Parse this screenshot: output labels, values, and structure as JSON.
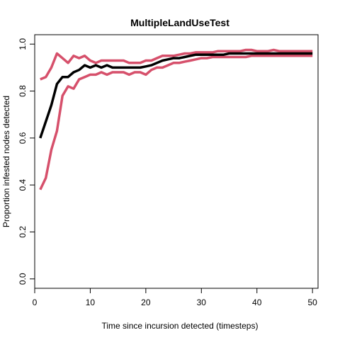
{
  "chart_data": {
    "type": "line",
    "title": "MultipleLandUseTest",
    "xlabel": "Time since incursion detected (timesteps)",
    "ylabel": "Proportion infested nodes detected",
    "xlim": [
      0,
      51
    ],
    "ylim": [
      -0.04,
      1.04
    ],
    "xticks": [
      0,
      10,
      20,
      30,
      40,
      50
    ],
    "yticks": [
      0.0,
      0.2,
      0.4,
      0.6,
      0.8,
      1.0
    ],
    "ytick_labels": [
      "0.0",
      "0.2",
      "0.4",
      "0.6",
      "0.8",
      "1.0"
    ],
    "grid": false,
    "legend": "none",
    "x": [
      1,
      2,
      3,
      4,
      5,
      6,
      7,
      8,
      9,
      10,
      11,
      12,
      13,
      14,
      15,
      16,
      17,
      18,
      19,
      20,
      21,
      22,
      23,
      24,
      25,
      26,
      27,
      28,
      29,
      30,
      31,
      32,
      33,
      34,
      35,
      36,
      37,
      38,
      39,
      40,
      41,
      42,
      43,
      44,
      45,
      46,
      47,
      48,
      49,
      50
    ],
    "series": [
      {
        "color": "#d6506b",
        "width": 3.5,
        "values": [
          0.85,
          0.86,
          0.9,
          0.96,
          0.94,
          0.92,
          0.95,
          0.94,
          0.95,
          0.93,
          0.92,
          0.93,
          0.93,
          0.93,
          0.93,
          0.93,
          0.92,
          0.92,
          0.92,
          0.93,
          0.93,
          0.94,
          0.95,
          0.95,
          0.95,
          0.955,
          0.96,
          0.96,
          0.965,
          0.965,
          0.965,
          0.965,
          0.97,
          0.97,
          0.97,
          0.97,
          0.97,
          0.975,
          0.975,
          0.97,
          0.97,
          0.97,
          0.975,
          0.97,
          0.97,
          0.97,
          0.97,
          0.97,
          0.97,
          0.97
        ]
      },
      {
        "color": "#d6506b",
        "width": 3.5,
        "values": [
          0.38,
          0.43,
          0.55,
          0.63,
          0.78,
          0.82,
          0.81,
          0.85,
          0.86,
          0.87,
          0.87,
          0.88,
          0.87,
          0.88,
          0.88,
          0.88,
          0.87,
          0.88,
          0.88,
          0.87,
          0.89,
          0.9,
          0.9,
          0.91,
          0.92,
          0.92,
          0.925,
          0.93,
          0.935,
          0.94,
          0.94,
          0.945,
          0.945,
          0.945,
          0.945,
          0.945,
          0.945,
          0.945,
          0.95,
          0.95,
          0.95,
          0.95,
          0.95,
          0.95,
          0.95,
          0.95,
          0.95,
          0.95,
          0.95,
          0.95
        ]
      },
      {
        "color": "#000000",
        "width": 3.5,
        "values": [
          0.6,
          0.67,
          0.74,
          0.83,
          0.86,
          0.86,
          0.88,
          0.89,
          0.91,
          0.9,
          0.91,
          0.9,
          0.91,
          0.9,
          0.9,
          0.9,
          0.9,
          0.9,
          0.9,
          0.905,
          0.91,
          0.92,
          0.93,
          0.935,
          0.94,
          0.94,
          0.945,
          0.95,
          0.955,
          0.955,
          0.955,
          0.955,
          0.955,
          0.955,
          0.96,
          0.96,
          0.96,
          0.96,
          0.96,
          0.96,
          0.96,
          0.96,
          0.96,
          0.96,
          0.96,
          0.96,
          0.96,
          0.96,
          0.96,
          0.96
        ]
      }
    ]
  }
}
